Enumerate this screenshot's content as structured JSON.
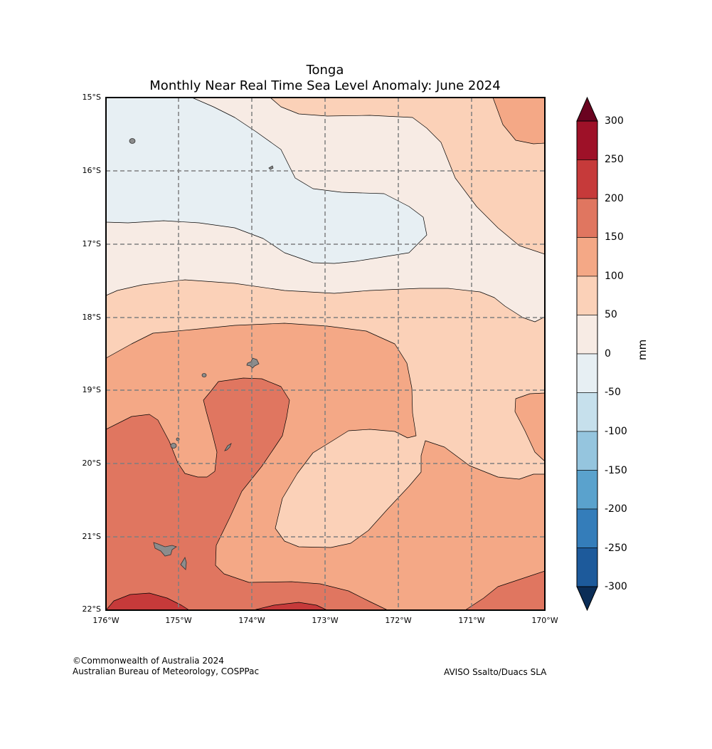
{
  "title": "Tonga",
  "subtitle": "Monthly Near Real Time Sea Level Anomaly: June 2024",
  "axes": {
    "lat_labels": [
      "15°S",
      "16°S",
      "17°S",
      "18°S",
      "19°S",
      "20°S",
      "21°S",
      "22°S"
    ],
    "lon_labels": [
      "176°W",
      "175°W",
      "174°W",
      "173°W",
      "172°W",
      "171°W",
      "170°W"
    ]
  },
  "colorbar": {
    "unit": "mm",
    "tick_labels": [
      "300",
      "250",
      "200",
      "150",
      "100",
      "50",
      "0",
      "-50",
      "-100",
      "-150",
      "-200",
      "-250",
      "-300"
    ],
    "colors_top_to_bottom": [
      "#9e1128",
      "#c63a3a",
      "#e07660",
      "#f4a886",
      "#fbd1b8",
      "#f7ebe4",
      "#e7eff3",
      "#c6e0ec",
      "#95c5de",
      "#5aa2cd",
      "#347dba",
      "#1d5a9b"
    ],
    "over_color": "#6a0320",
    "under_color": "#0b2d57"
  },
  "colors": {
    "land": "#8c8c8c",
    "grid": "#7f7f7f"
  },
  "credit": {
    "line1": "©Commonwealth of Australia 2024",
    "line2": "Australian Bureau of Meteorology, COSPPac"
  },
  "source": "AVISO Ssalto/Duacs SLA"
}
